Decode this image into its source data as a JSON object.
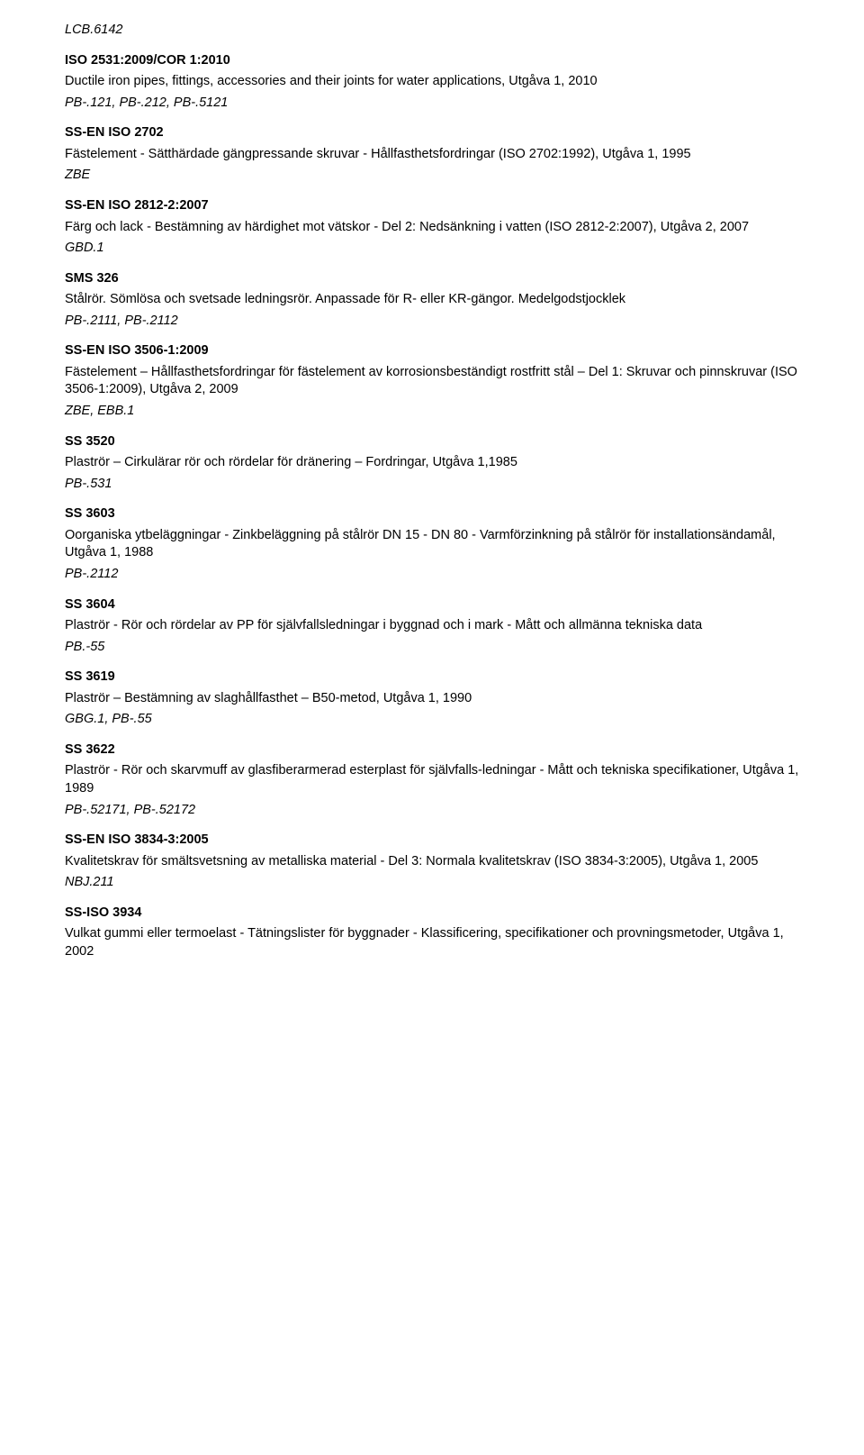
{
  "entries": [
    {
      "top_ref": "LCB.6142",
      "code": "ISO 2531:2009/COR 1:2010",
      "desc": "Ductile iron pipes, fittings, accessories and their joints for water applications, Utgåva 1, 2010",
      "ref": "PB-.121, PB-.212, PB-.5121"
    },
    {
      "code": "SS-EN ISO 2702",
      "desc": "Fästelement - Sätthärdade gängpressande skruvar - Hållfasthetsfordringar (ISO 2702:1992), Utgåva 1, 1995",
      "ref": "ZBE"
    },
    {
      "code": "SS-EN ISO 2812-2:2007",
      "desc": "Färg och lack - Bestämning av härdighet mot vätskor - Del 2: Nedsänkning i vatten (ISO 2812-2:2007), Utgåva 2, 2007",
      "ref": "GBD.1"
    },
    {
      "code": "SMS 326",
      "desc": "Stålrör. Sömlösa och svetsade ledningsrör. Anpassade för R- eller KR-gängor. Medelgodstjocklek",
      "ref": "PB-.2111, PB-.2112"
    },
    {
      "code": "SS-EN ISO 3506-1:2009",
      "desc": "Fästelement – Hållfasthetsfordringar för fästelement av korrosionsbeständigt rostfritt stål – Del 1: Skruvar och pinnskruvar (ISO 3506-1:2009), Utgåva 2, 2009",
      "ref": "ZBE, EBB.1"
    },
    {
      "code": "SS 3520",
      "desc": "Plaströr – Cirkulärar rör och rördelar för dränering – Fordringar, Utgåva 1,1985",
      "ref": "PB-.531"
    },
    {
      "code": "SS 3603",
      "desc": "Oorganiska ytbeläggningar - Zinkbeläggning på stålrör DN 15 - DN 80 - Varmförzinkning på stålrör för installationsändamål, Utgåva 1, 1988",
      "ref": "PB-.2112"
    },
    {
      "code": "SS 3604",
      "desc": "Plaströr - Rör och rördelar av PP för självfallsledningar i byggnad och i mark - Mått och allmänna tekniska data",
      "ref": "PB.-55"
    },
    {
      "code": "SS 3619",
      "desc": "Plaströr – Bestämning av slaghållfasthet – B50-metod, Utgåva 1, 1990",
      "ref": "GBG.1, PB-.55"
    },
    {
      "code": "SS 3622",
      "desc": "Plaströr - Rör och skarvmuff av glasfiberarmerad esterplast för självfalls-ledningar - Mått och tekniska specifikationer, Utgåva 1, 1989",
      "ref": "PB-.52171, PB-.52172"
    },
    {
      "code": "SS-EN ISO 3834-3:2005",
      "desc": "Kvalitetskrav för smältsvetsning av metalliska material - Del 3: Normala kvalitetskrav (ISO 3834-3:2005), Utgåva 1, 2005",
      "ref": "NBJ.211"
    },
    {
      "code": "SS-ISO 3934",
      "desc": "Vulkat gummi eller termoelast - Tätningslister för byggnader - Klassificering, specifikationer och provningsmetoder, Utgåva 1, 2002",
      "ref": null
    }
  ]
}
